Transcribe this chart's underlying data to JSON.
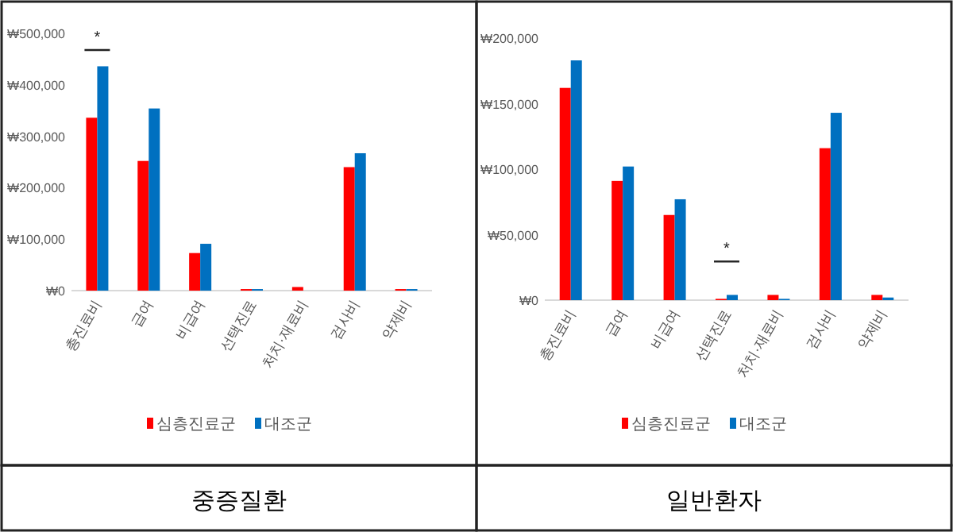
{
  "chart_data": [
    {
      "type": "bar",
      "title": "중증질환",
      "categories": [
        "총진료비",
        "급여",
        "비급여",
        "선택진료",
        "처치·재료비",
        "검사비",
        "약제비"
      ],
      "series": [
        {
          "name": "심층진료군",
          "color": "#ff0000",
          "values": [
            336000,
            252000,
            73000,
            3000,
            7000,
            240000,
            3000
          ]
        },
        {
          "name": "대조군",
          "color": "#0070c0",
          "values": [
            436000,
            354000,
            91000,
            3000,
            0,
            267000,
            3000
          ]
        }
      ],
      "ylim": [
        0,
        500000
      ],
      "yticks": [
        {
          "value": 0,
          "label": "₩0"
        },
        {
          "value": 100000,
          "label": "₩100,000"
        },
        {
          "value": 200000,
          "label": "₩200,000"
        },
        {
          "value": 300000,
          "label": "₩300,000"
        },
        {
          "value": 400000,
          "label": "₩400,000"
        },
        {
          "value": 500000,
          "label": "₩500,000"
        }
      ],
      "legend": "bottom",
      "grid": false,
      "annotations": [
        "*"
      ]
    },
    {
      "type": "bar",
      "title": "일반환자",
      "categories": [
        "총진료비",
        "급여",
        "비급여",
        "선택진료",
        "처치·재료비",
        "검사비",
        "약제비"
      ],
      "series": [
        {
          "name": "심층진료군",
          "color": "#ff0000",
          "values": [
            162000,
            91000,
            65000,
            1000,
            4000,
            116000,
            4000
          ]
        },
        {
          "name": "대조군",
          "color": "#0070c0",
          "values": [
            183000,
            102000,
            77000,
            4000,
            1000,
            143000,
            2000
          ]
        }
      ],
      "ylim": [
        0,
        200000
      ],
      "yticks": [
        {
          "value": 0,
          "label": "₩0"
        },
        {
          "value": 50000,
          "label": "₩50,000"
        },
        {
          "value": 100000,
          "label": "₩100,000"
        },
        {
          "value": 150000,
          "label": "₩150,000"
        },
        {
          "value": 200000,
          "label": "₩200,000"
        }
      ],
      "legend": "bottom",
      "grid": false,
      "annotations": [
        "*"
      ]
    }
  ]
}
